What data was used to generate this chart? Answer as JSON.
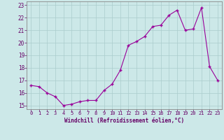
{
  "x": [
    0,
    1,
    2,
    3,
    4,
    5,
    6,
    7,
    8,
    9,
    10,
    11,
    12,
    13,
    14,
    15,
    16,
    17,
    18,
    19,
    20,
    21,
    22,
    23
  ],
  "y": [
    16.6,
    16.5,
    16.0,
    15.7,
    15.0,
    15.1,
    15.3,
    15.4,
    15.4,
    16.2,
    16.7,
    17.8,
    19.8,
    20.1,
    20.5,
    21.3,
    21.4,
    22.2,
    22.6,
    21.0,
    21.1,
    22.8,
    18.1,
    17.0
  ],
  "line_color": "#990099",
  "marker_color": "#990099",
  "bg_color": "#cce8e8",
  "grid_color": "#aacccc",
  "axis_color": "#660066",
  "tick_color": "#660066",
  "xlabel": "Windchill (Refroidissement éolien,°C)",
  "ylim": [
    15,
    23
  ],
  "xlim": [
    0,
    23
  ],
  "yticks": [
    15,
    16,
    17,
    18,
    19,
    20,
    21,
    22,
    23
  ],
  "xticks": [
    0,
    1,
    2,
    3,
    4,
    5,
    6,
    7,
    8,
    9,
    10,
    11,
    12,
    13,
    14,
    15,
    16,
    17,
    18,
    19,
    20,
    21,
    22,
    23
  ]
}
